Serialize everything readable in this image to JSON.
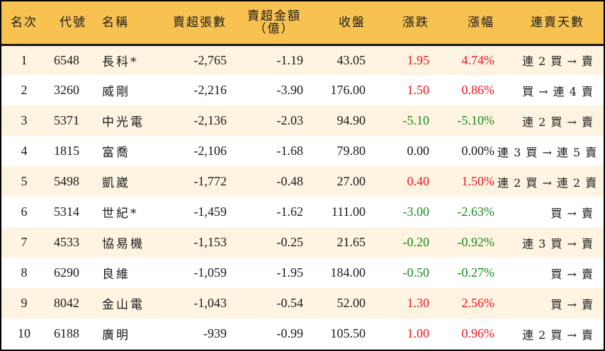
{
  "colors": {
    "header_bg": "#F8C250",
    "row_alt_bg": "#FEF4E1",
    "row_bg": "#FFFFFF",
    "up": "#F0141E",
    "down": "#168A1E",
    "border": "#000000"
  },
  "headers": {
    "rank": "名次",
    "code": "代號",
    "name": "名稱",
    "net_sell_lots": "賣超張數",
    "net_sell_amount_line1": "賣超金額",
    "net_sell_amount_line2": "（億）",
    "close": "收盤",
    "change": "漲跌",
    "change_pct": "漲幅",
    "streak": "連賣天數"
  },
  "rows": [
    {
      "rank": "1",
      "code": "6548",
      "name": "長科*",
      "lots": "-2,765",
      "amount": "-1.19",
      "close": "43.05",
      "change": "1.95",
      "pct": "4.74%",
      "dir": "up",
      "streak": "連 2 買 → 賣"
    },
    {
      "rank": "2",
      "code": "3260",
      "name": "威剛",
      "lots": "-2,216",
      "amount": "-3.90",
      "close": "176.00",
      "change": "1.50",
      "pct": "0.86%",
      "dir": "up",
      "streak": "買 → 連 4 賣"
    },
    {
      "rank": "3",
      "code": "5371",
      "name": "中光電",
      "lots": "-2,136",
      "amount": "-2.03",
      "close": "94.90",
      "change": "-5.10",
      "pct": "-5.10%",
      "dir": "down",
      "streak": "連 2 買 → 賣"
    },
    {
      "rank": "4",
      "code": "1815",
      "name": "富喬",
      "lots": "-2,106",
      "amount": "-1.68",
      "close": "79.80",
      "change": "0.00",
      "pct": "0.00%",
      "dir": "flat",
      "streak": "連 3 買 → 連 5 賣"
    },
    {
      "rank": "5",
      "code": "5498",
      "name": "凱崴",
      "lots": "-1,772",
      "amount": "-0.48",
      "close": "27.00",
      "change": "0.40",
      "pct": "1.50%",
      "dir": "up",
      "streak": "連 2 買 → 連 2 賣"
    },
    {
      "rank": "6",
      "code": "5314",
      "name": "世紀*",
      "lots": "-1,459",
      "amount": "-1.62",
      "close": "111.00",
      "change": "-3.00",
      "pct": "-2.63%",
      "dir": "down",
      "streak": "買 → 賣"
    },
    {
      "rank": "7",
      "code": "4533",
      "name": "協易機",
      "lots": "-1,153",
      "amount": "-0.25",
      "close": "21.65",
      "change": "-0.20",
      "pct": "-0.92%",
      "dir": "down",
      "streak": "連 3 買 → 賣"
    },
    {
      "rank": "8",
      "code": "6290",
      "name": "良維",
      "lots": "-1,059",
      "amount": "-1.95",
      "close": "184.00",
      "change": "-0.50",
      "pct": "-0.27%",
      "dir": "down",
      "streak": "買 → 賣"
    },
    {
      "rank": "9",
      "code": "8042",
      "name": "金山電",
      "lots": "-1,043",
      "amount": "-0.54",
      "close": "52.00",
      "change": "1.30",
      "pct": "2.56%",
      "dir": "up",
      "streak": "買 → 賣"
    },
    {
      "rank": "10",
      "code": "6188",
      "name": "廣明",
      "lots": "-939",
      "amount": "-0.99",
      "close": "105.50",
      "change": "1.00",
      "pct": "0.96%",
      "dir": "up",
      "streak": "連 2 買 → 賣"
    }
  ]
}
